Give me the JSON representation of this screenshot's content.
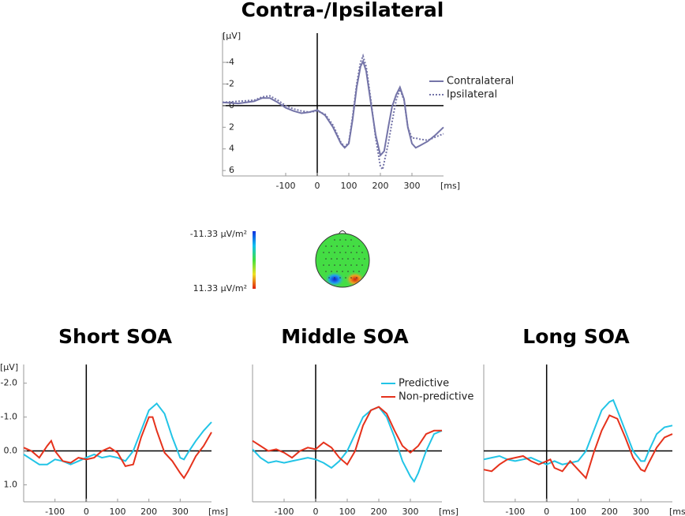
{
  "chart_data": [
    {
      "type": "line",
      "title": "Contra-/Ipsilateral",
      "y_label": "[µV]",
      "x_label": "[ms]",
      "xlim": [
        -300,
        400
      ],
      "xticks": [
        -100,
        0,
        100,
        200,
        300
      ],
      "ylim": [
        6.5,
        -6.7
      ],
      "yticks": [
        -4,
        -2,
        0,
        2,
        4,
        6
      ],
      "legend": "right",
      "series": [
        {
          "name": "Contralateral",
          "color": "#7474a8",
          "line_style": "solid",
          "x": [
            -300,
            -250,
            -200,
            -175,
            -150,
            -125,
            -100,
            -75,
            -50,
            -25,
            0,
            25,
            50,
            75,
            87,
            100,
            112,
            125,
            137,
            145,
            155,
            170,
            185,
            200,
            212,
            225,
            237,
            250,
            262,
            275,
            287,
            300,
            312,
            325,
            350,
            375,
            400
          ],
          "values": [
            -0.3,
            -0.2,
            -0.4,
            -0.7,
            -0.7,
            -0.3,
            0.2,
            0.5,
            0.7,
            0.6,
            0.4,
            0.9,
            2,
            3.5,
            3.9,
            3.5,
            1.3,
            -1.7,
            -3.6,
            -4.1,
            -3.2,
            -0.2,
            2.7,
            4.6,
            4.2,
            2,
            0.1,
            -1,
            -1.7,
            -0.6,
            2,
            3.5,
            3.9,
            3.7,
            3.3,
            2.7,
            2
          ]
        },
        {
          "name": "Ipsilateral",
          "color": "#7474a8",
          "line_style": "dotted",
          "x": [
            -300,
            -250,
            -200,
            -175,
            -150,
            -125,
            -100,
            -75,
            -50,
            -25,
            0,
            25,
            50,
            75,
            87,
            100,
            112,
            125,
            137,
            145,
            155,
            170,
            185,
            200,
            207,
            225,
            237,
            250,
            262,
            275,
            287,
            300,
            312,
            325,
            350,
            375,
            400
          ],
          "values": [
            -0.3,
            -0.4,
            -0.5,
            -0.8,
            -0.9,
            -0.5,
            0,
            0.3,
            0.5,
            0.6,
            0.5,
            0.8,
            1.8,
            3.4,
            3.8,
            3.4,
            1,
            -2,
            -4,
            -4.6,
            -3.6,
            -0.5,
            3,
            5.6,
            5.9,
            3.5,
            1.5,
            -0.5,
            -1.5,
            -0.5,
            2,
            3,
            3,
            3.1,
            3.2,
            2.9,
            2.6
          ]
        }
      ]
    },
    {
      "type": "line",
      "title": "Short SOA",
      "y_label": "[µV]",
      "x_label": "[ms]",
      "xlim": [
        -200,
        400
      ],
      "xticks": [
        -100,
        0,
        100,
        200,
        300
      ],
      "ylim": [
        1.5,
        -2.55
      ],
      "yticks": [
        {
          "value": -2,
          "label": "-2.0"
        },
        {
          "value": -1,
          "label": "-1.0"
        },
        {
          "value": 0,
          "label": "0.0"
        },
        {
          "value": 1,
          "label": "1.0"
        }
      ],
      "series": [
        {
          "name": "Predictive",
          "color": "#22c4e6",
          "line_style": "solid",
          "x": [
            -200,
            -175,
            -150,
            -125,
            -100,
            -75,
            -50,
            -25,
            0,
            25,
            50,
            75,
            100,
            125,
            150,
            175,
            200,
            225,
            250,
            275,
            300,
            312,
            325,
            350,
            375,
            400
          ],
          "values": [
            0.1,
            0.25,
            0.4,
            0.4,
            0.25,
            0.3,
            0.4,
            0.3,
            0.2,
            0.1,
            0.2,
            0.15,
            0.2,
            0.3,
            0,
            -0.6,
            -1.2,
            -1.4,
            -1.1,
            -0.4,
            0.2,
            0.25,
            0.05,
            -0.3,
            -0.6,
            -0.85
          ]
        },
        {
          "name": "Non-predictive",
          "color": "#e5321c",
          "line_style": "solid",
          "x": [
            -200,
            -175,
            -150,
            -125,
            -112,
            -100,
            -75,
            -50,
            -25,
            0,
            25,
            50,
            75,
            100,
            125,
            150,
            175,
            200,
            212,
            225,
            250,
            275,
            300,
            312,
            325,
            350,
            375,
            400
          ],
          "values": [
            -0.1,
            0,
            0.2,
            -0.15,
            -0.3,
            0,
            0.3,
            0.35,
            0.2,
            0.25,
            0.2,
            0,
            -0.1,
            0.05,
            0.45,
            0.4,
            -0.4,
            -1,
            -1,
            -0.6,
            0.05,
            0.3,
            0.65,
            0.8,
            0.6,
            0.15,
            -0.15,
            -0.55
          ]
        }
      ]
    },
    {
      "type": "line",
      "title": "Middle SOA",
      "x_label": "[ms]",
      "xlim": [
        -200,
        400
      ],
      "xticks": [
        -100,
        0,
        100,
        200,
        300
      ],
      "ylim": [
        1.5,
        -2.55
      ],
      "legend": "upper right",
      "series": [
        {
          "name": "Predictive",
          "color": "#22c4e6",
          "line_style": "solid",
          "x": [
            -200,
            -175,
            -150,
            -125,
            -100,
            -75,
            -50,
            -25,
            0,
            25,
            50,
            75,
            100,
            125,
            150,
            175,
            200,
            225,
            250,
            275,
            300,
            312,
            325,
            350,
            375,
            400
          ],
          "values": [
            -0.05,
            0.2,
            0.35,
            0.3,
            0.35,
            0.3,
            0.25,
            0.2,
            0.25,
            0.35,
            0.5,
            0.3,
            0,
            -0.5,
            -1,
            -1.2,
            -1.3,
            -1,
            -0.4,
            0.3,
            0.75,
            0.9,
            0.65,
            0,
            -0.5,
            -0.6
          ]
        },
        {
          "name": "Non-predictive",
          "color": "#e5321c",
          "line_style": "solid",
          "x": [
            -200,
            -175,
            -150,
            -125,
            -100,
            -75,
            -50,
            -25,
            0,
            25,
            50,
            75,
            100,
            125,
            150,
            175,
            200,
            225,
            250,
            275,
            300,
            325,
            350,
            375,
            400
          ],
          "values": [
            -0.3,
            -0.15,
            0,
            -0.05,
            0.05,
            0.2,
            0,
            -0.1,
            -0.05,
            -0.25,
            -0.1,
            0.2,
            0.4,
            0,
            -0.75,
            -1.2,
            -1.3,
            -1.1,
            -0.6,
            -0.15,
            0.05,
            -0.15,
            -0.5,
            -0.6,
            -0.6
          ]
        }
      ]
    },
    {
      "type": "line",
      "title": "Long SOA",
      "x_label": "[ms]",
      "xlim": [
        -200,
        400
      ],
      "xticks": [
        -100,
        0,
        100,
        200,
        300
      ],
      "ylim": [
        1.5,
        -2.55
      ],
      "series": [
        {
          "name": "Predictive",
          "color": "#22c4e6",
          "line_style": "solid",
          "x": [
            -200,
            -175,
            -150,
            -125,
            -100,
            -75,
            -50,
            -25,
            0,
            25,
            50,
            75,
            100,
            125,
            150,
            175,
            200,
            212,
            225,
            250,
            275,
            300,
            312,
            325,
            350,
            375,
            400
          ],
          "values": [
            0.25,
            0.2,
            0.15,
            0.25,
            0.3,
            0.25,
            0.2,
            0.3,
            0.4,
            0.3,
            0.4,
            0.35,
            0.3,
            0,
            -0.6,
            -1.2,
            -1.45,
            -1.5,
            -1.2,
            -0.6,
            0,
            0.3,
            0.3,
            0,
            -0.5,
            -0.7,
            -0.75
          ]
        },
        {
          "name": "Non-predictive",
          "color": "#e5321c",
          "line_style": "solid",
          "x": [
            -200,
            -175,
            -150,
            -125,
            -100,
            -75,
            -50,
            -25,
            0,
            12,
            25,
            50,
            75,
            100,
            125,
            150,
            175,
            200,
            225,
            250,
            275,
            300,
            312,
            325,
            350,
            375,
            400
          ],
          "values": [
            0.55,
            0.6,
            0.4,
            0.25,
            0.2,
            0.15,
            0.3,
            0.4,
            0.3,
            0.25,
            0.5,
            0.6,
            0.3,
            0.55,
            0.8,
            0.05,
            -0.6,
            -1.05,
            -0.95,
            -0.4,
            0.2,
            0.55,
            0.6,
            0.35,
            -0.1,
            -0.4,
            -0.5
          ]
        }
      ]
    }
  ],
  "topomap": {
    "scale_labels": [
      "-11.33 µV/m²",
      "11.33 µV/m²"
    ]
  }
}
